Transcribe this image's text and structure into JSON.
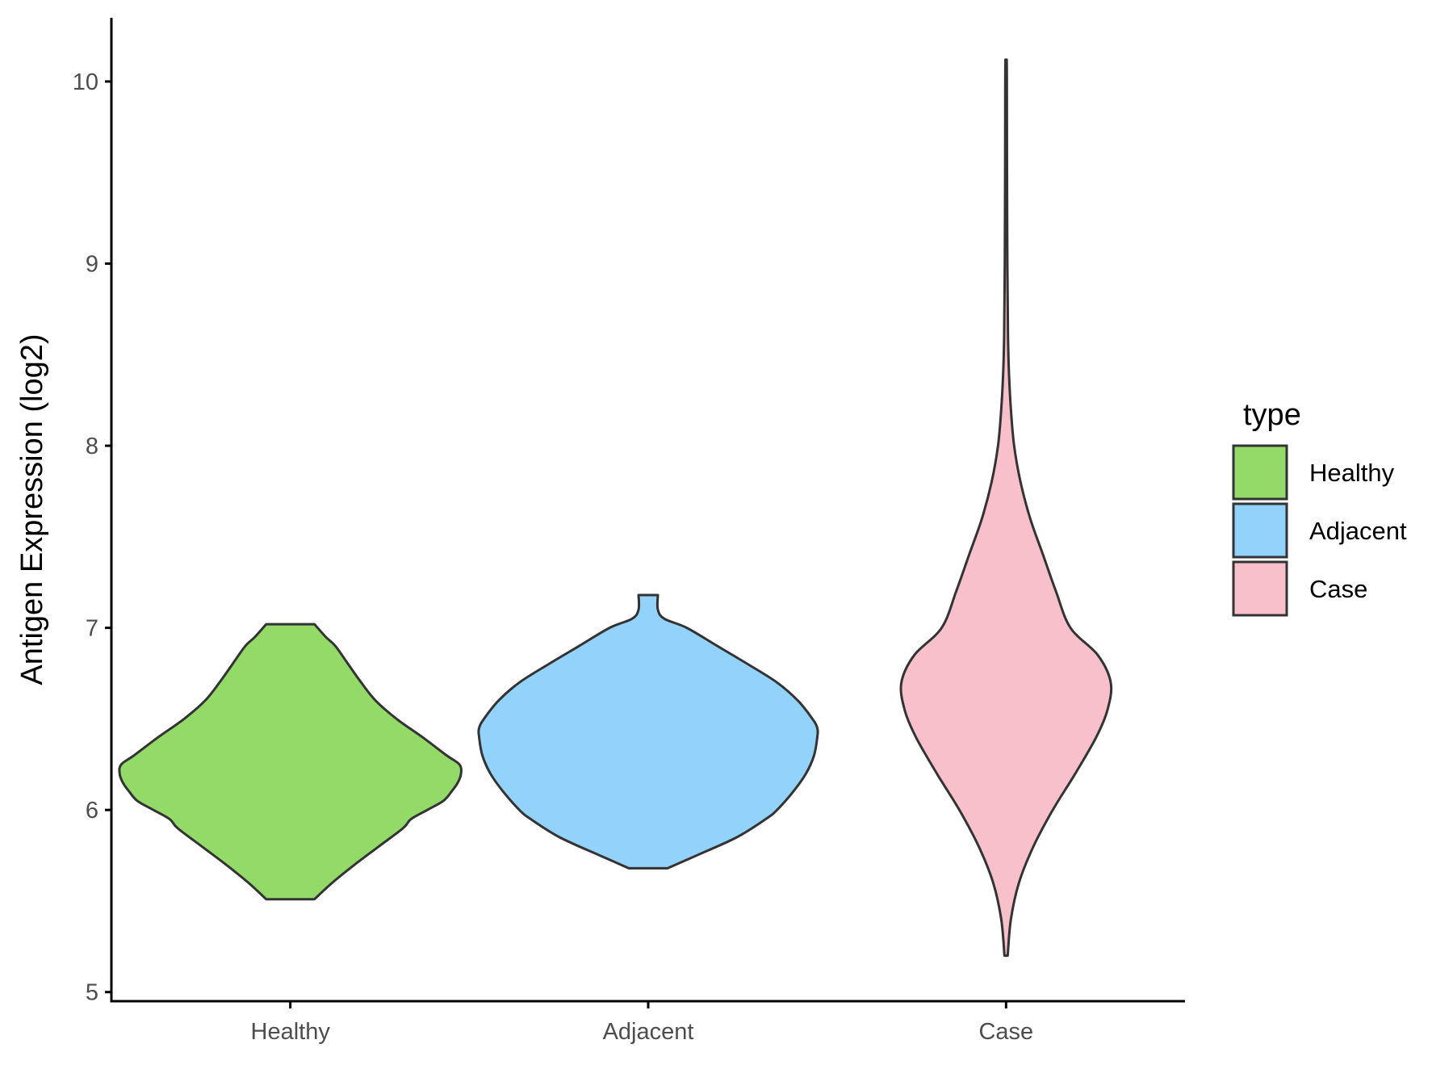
{
  "chart_data": {
    "type": "violin",
    "title": "",
    "xlabel": "",
    "ylabel": "Antigen Expression (log2)",
    "ylim": [
      4.95,
      10.35
    ],
    "yticks": [
      5,
      6,
      7,
      8,
      9,
      10
    ],
    "categories": [
      "Healthy",
      "Adjacent",
      "Case"
    ],
    "legend": {
      "title": "type",
      "position": "right",
      "items": [
        {
          "label": "Healthy",
          "color": "#93DA69"
        },
        {
          "label": "Adjacent",
          "color": "#92D2FB"
        },
        {
          "label": "Case",
          "color": "#F7C0CB"
        }
      ]
    },
    "series": [
      {
        "name": "Healthy",
        "color": "#93DA69",
        "min": 5.51,
        "max": 7.02,
        "profile": [
          [
            5.51,
            0.15
          ],
          [
            5.6,
            0.26
          ],
          [
            5.7,
            0.4
          ],
          [
            5.8,
            0.55
          ],
          [
            5.9,
            0.7
          ],
          [
            5.95,
            0.75
          ],
          [
            6.0,
            0.85
          ],
          [
            6.05,
            0.95
          ],
          [
            6.1,
            1.0
          ],
          [
            6.15,
            1.04
          ],
          [
            6.2,
            1.06
          ],
          [
            6.25,
            1.05
          ],
          [
            6.3,
            0.97
          ],
          [
            6.4,
            0.82
          ],
          [
            6.5,
            0.66
          ],
          [
            6.6,
            0.53
          ],
          [
            6.7,
            0.44
          ],
          [
            6.8,
            0.36
          ],
          [
            6.9,
            0.28
          ],
          [
            6.95,
            0.22
          ],
          [
            7.02,
            0.15
          ]
        ]
      },
      {
        "name": "Adjacent",
        "color": "#92D2FB",
        "min": 5.68,
        "max": 7.18,
        "profile": [
          [
            5.68,
            0.12
          ],
          [
            5.75,
            0.3
          ],
          [
            5.85,
            0.55
          ],
          [
            5.95,
            0.73
          ],
          [
            6.0,
            0.8
          ],
          [
            6.1,
            0.9
          ],
          [
            6.2,
            0.98
          ],
          [
            6.3,
            1.03
          ],
          [
            6.4,
            1.05
          ],
          [
            6.45,
            1.05
          ],
          [
            6.5,
            1.02
          ],
          [
            6.6,
            0.93
          ],
          [
            6.7,
            0.8
          ],
          [
            6.8,
            0.62
          ],
          [
            6.9,
            0.43
          ],
          [
            7.0,
            0.24
          ],
          [
            7.05,
            0.1
          ],
          [
            7.1,
            0.06
          ],
          [
            7.18,
            0.06
          ]
        ]
      },
      {
        "name": "Case",
        "color": "#F7C0CB",
        "min": 5.2,
        "max": 10.12,
        "profile": [
          [
            5.2,
            0.01
          ],
          [
            5.4,
            0.03
          ],
          [
            5.6,
            0.08
          ],
          [
            5.8,
            0.17
          ],
          [
            6.0,
            0.29
          ],
          [
            6.2,
            0.43
          ],
          [
            6.4,
            0.56
          ],
          [
            6.55,
            0.63
          ],
          [
            6.7,
            0.65
          ],
          [
            6.85,
            0.57
          ],
          [
            7.0,
            0.4
          ],
          [
            7.2,
            0.31
          ],
          [
            7.4,
            0.23
          ],
          [
            7.6,
            0.15
          ],
          [
            7.8,
            0.09
          ],
          [
            8.0,
            0.05
          ],
          [
            8.2,
            0.03
          ],
          [
            8.4,
            0.018
          ],
          [
            8.6,
            0.012
          ],
          [
            8.8,
            0.01
          ],
          [
            9.0,
            0.008
          ],
          [
            9.5,
            0.006
          ],
          [
            10.0,
            0.005
          ],
          [
            10.12,
            0.004
          ]
        ]
      }
    ]
  }
}
